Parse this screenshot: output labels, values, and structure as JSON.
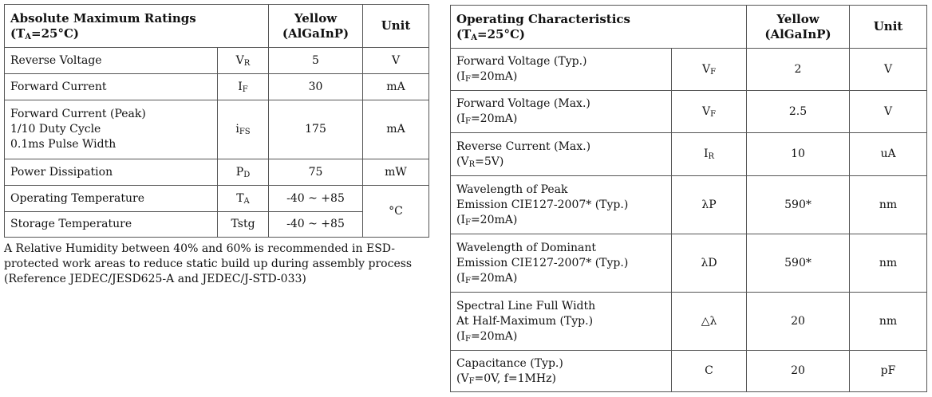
{
  "abs": {
    "title": "Absolute Maximum Ratings",
    "cond_main": "T",
    "cond_sub": "A",
    "cond_rest": "=25°C)",
    "cond_open": "(",
    "color_line1": "Yellow",
    "color_line2": "(AlGaInP)",
    "unit_header": "Unit",
    "rows": [
      {
        "param": [
          "Reverse Voltage"
        ],
        "sym": "V",
        "sym_sub": "R",
        "value": "5",
        "unit": "V"
      },
      {
        "param": [
          "Forward Current"
        ],
        "sym": "I",
        "sym_sub": "F",
        "value": "30",
        "unit": "mA"
      },
      {
        "param": [
          "Forward Current (Peak)",
          "1/10 Duty Cycle",
          "0.1ms Pulse Width"
        ],
        "sym": "i",
        "sym_sub": "FS",
        "value": "175",
        "unit": "mA"
      },
      {
        "param": [
          "Power Dissipation"
        ],
        "sym": "P",
        "sym_sub": "D",
        "value": "75",
        "unit": "mW"
      },
      {
        "param": [
          "Operating Temperature"
        ],
        "sym": "T",
        "sym_sub": "A",
        "value": "-40 ~ +85",
        "unit": "°C"
      },
      {
        "param": [
          "Storage Temperature"
        ],
        "sym": "Tstg",
        "sym_sub": "",
        "value": "-40 ~ +85"
      }
    ]
  },
  "note": "A Relative Humidity between 40% and 60% is recommended in ESD-protected work areas to reduce static build up during assembly process (Reference JEDEC/JESD625-A and JEDEC/J-STD-033)",
  "op": {
    "title": "Operating Characteristics",
    "cond_open": "(",
    "cond_main": "T",
    "cond_sub": "A",
    "cond_rest": "=25°C)",
    "color_line1": "Yellow",
    "color_line2": "(AlGaInP)",
    "unit_header": "Unit",
    "rows": [
      {
        "line1": "Forward Voltage (Typ.)",
        "line2": "",
        "cond": {
          "a": "(I",
          "s": "F",
          "b": "=20mA)"
        },
        "sym": "V",
        "sym_sub": "F",
        "value": "2",
        "unit": "V"
      },
      {
        "line1": "Forward Voltage (Max.)",
        "line2": "",
        "cond": {
          "a": "(I",
          "s": "F",
          "b": "=20mA)"
        },
        "sym": "V",
        "sym_sub": "F",
        "value": "2.5",
        "unit": "V"
      },
      {
        "line1": "Reverse Current (Max.)",
        "line2": "",
        "cond": {
          "a": "(V",
          "s": "R",
          "b": "=5V)"
        },
        "sym": "I",
        "sym_sub": "R",
        "value": "10",
        "unit": "uA"
      },
      {
        "line1": "Wavelength of Peak",
        "line2": "Emission CIE127-2007* (Typ.)",
        "cond": {
          "a": "(I",
          "s": "F",
          "b": "=20mA)"
        },
        "sym": "λP",
        "sym_sub": "",
        "value": "590*",
        "unit": "nm"
      },
      {
        "line1": "Wavelength of Dominant",
        "line2": "Emission CIE127-2007* (Typ.)",
        "cond": {
          "a": "(I",
          "s": "F",
          "b": "=20mA)"
        },
        "sym": "λD",
        "sym_sub": "",
        "value": "590*",
        "unit": "nm"
      },
      {
        "line1": "Spectral Line Full Width",
        "line2": "At Half-Maximum (Typ.)",
        "cond": {
          "a": "(I",
          "s": "F",
          "b": "=20mA)"
        },
        "sym": "△λ",
        "sym_sub": "",
        "value": "20",
        "unit": "nm"
      },
      {
        "line1": "Capacitance (Typ.)",
        "line2": "",
        "cond": {
          "a": "(V",
          "s": "F",
          "b": "=0V, f=1MHz)"
        },
        "sym": "C",
        "sym_sub": "",
        "value": "20",
        "unit": "pF"
      }
    ]
  }
}
